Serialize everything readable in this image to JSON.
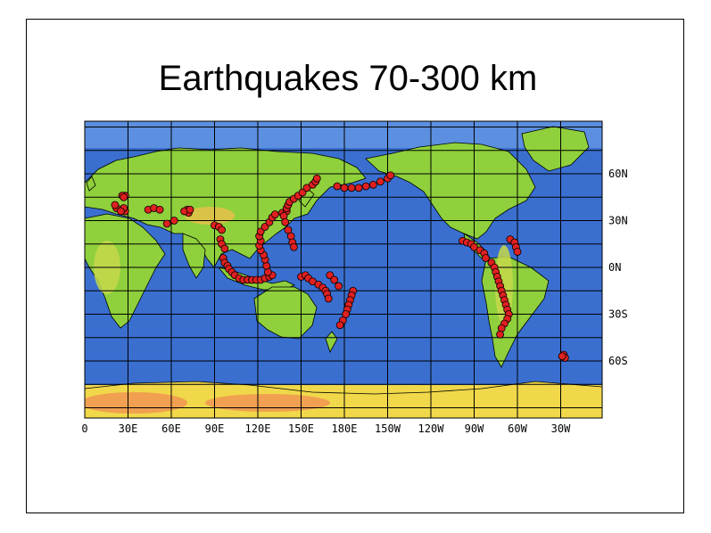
{
  "title": "Earthquakes 70-300 km",
  "x_ticks": [
    "0",
    "30E",
    "60E",
    "90E",
    "120E",
    "150E",
    "180E",
    "150W",
    "120W",
    "90W",
    "60W",
    "30W"
  ],
  "y_ticks": [
    "60N",
    "30N",
    "0N",
    "30S",
    "60S"
  ],
  "colors": {
    "ocean": "#3a6fd0",
    "land": "#8fd03c",
    "antarctica": "#f0d84a",
    "quake": "#e02020"
  },
  "chart_data": {
    "type": "scatter",
    "x_range": [
      0,
      360
    ],
    "y_range": [
      -90,
      90
    ],
    "points": [
      [
        26,
        37
      ],
      [
        28,
        36
      ],
      [
        27,
        38
      ],
      [
        22,
        38
      ],
      [
        25,
        36
      ],
      [
        21,
        40
      ],
      [
        28,
        46
      ],
      [
        26,
        46
      ],
      [
        27,
        45
      ],
      [
        44,
        37
      ],
      [
        48,
        38
      ],
      [
        52,
        37
      ],
      [
        57,
        28
      ],
      [
        62,
        30
      ],
      [
        70,
        36
      ],
      [
        71,
        37
      ],
      [
        72,
        35
      ],
      [
        69,
        36
      ],
      [
        73,
        37
      ],
      [
        90,
        27
      ],
      [
        93,
        26
      ],
      [
        95,
        24
      ],
      [
        94,
        18
      ],
      [
        95,
        15
      ],
      [
        97,
        12
      ],
      [
        96,
        6
      ],
      [
        97,
        3
      ],
      [
        99,
        1
      ],
      [
        100,
        -1
      ],
      [
        102,
        -3
      ],
      [
        104,
        -5
      ],
      [
        107,
        -7
      ],
      [
        110,
        -8
      ],
      [
        113,
        -8
      ],
      [
        116,
        -8
      ],
      [
        119,
        -8
      ],
      [
        122,
        -8
      ],
      [
        125,
        -7
      ],
      [
        128,
        -6
      ],
      [
        130,
        -5
      ],
      [
        127,
        -3
      ],
      [
        126,
        1
      ],
      [
        125,
        5
      ],
      [
        124,
        8
      ],
      [
        122,
        11
      ],
      [
        121,
        14
      ],
      [
        122,
        17
      ],
      [
        121,
        20
      ],
      [
        122,
        23
      ],
      [
        125,
        26
      ],
      [
        128,
        29
      ],
      [
        130,
        32
      ],
      [
        132,
        34
      ],
      [
        137,
        35
      ],
      [
        140,
        36
      ],
      [
        140,
        38
      ],
      [
        141,
        40
      ],
      [
        142,
        42
      ],
      [
        145,
        44
      ],
      [
        148,
        46
      ],
      [
        151,
        48
      ],
      [
        154,
        51
      ],
      [
        158,
        53
      ],
      [
        160,
        55
      ],
      [
        161,
        57
      ],
      [
        138,
        33
      ],
      [
        139,
        29
      ],
      [
        141,
        24
      ],
      [
        143,
        20
      ],
      [
        144,
        16
      ],
      [
        145,
        13
      ],
      [
        150,
        -6
      ],
      [
        153,
        -5
      ],
      [
        155,
        -7
      ],
      [
        158,
        -9
      ],
      [
        162,
        -11
      ],
      [
        165,
        -13
      ],
      [
        167,
        -15
      ],
      [
        168,
        -17
      ],
      [
        169,
        -20
      ],
      [
        186,
        -15
      ],
      [
        185,
        -18
      ],
      [
        184,
        -21
      ],
      [
        183,
        -24
      ],
      [
        182,
        -27
      ],
      [
        181,
        -30
      ],
      [
        179,
        -34
      ],
      [
        177,
        -37
      ],
      [
        170,
        -5
      ],
      [
        173,
        -8
      ],
      [
        176,
        -12
      ],
      [
        175,
        52
      ],
      [
        180,
        51
      ],
      [
        185,
        51
      ],
      [
        190,
        51
      ],
      [
        195,
        52
      ],
      [
        200,
        53
      ],
      [
        205,
        55
      ],
      [
        210,
        57
      ],
      [
        212,
        59
      ],
      [
        262,
        17
      ],
      [
        265,
        16
      ],
      [
        268,
        15
      ],
      [
        270,
        13
      ],
      [
        274,
        11
      ],
      [
        277,
        9
      ],
      [
        278,
        6
      ],
      [
        282,
        3
      ],
      [
        284,
        0
      ],
      [
        285,
        -3
      ],
      [
        286,
        -6
      ],
      [
        287,
        -9
      ],
      [
        288,
        -12
      ],
      [
        289,
        -15
      ],
      [
        290,
        -18
      ],
      [
        291,
        -21
      ],
      [
        292,
        -24
      ],
      [
        293,
        -27
      ],
      [
        294,
        -30
      ],
      [
        293,
        -33
      ],
      [
        291,
        -36
      ],
      [
        289,
        -39
      ],
      [
        288,
        -43
      ],
      [
        295,
        18
      ],
      [
        298,
        16
      ],
      [
        299,
        13
      ],
      [
        300,
        10
      ],
      [
        332,
        -56
      ],
      [
        333,
        -58
      ],
      [
        331,
        -57
      ]
    ]
  }
}
